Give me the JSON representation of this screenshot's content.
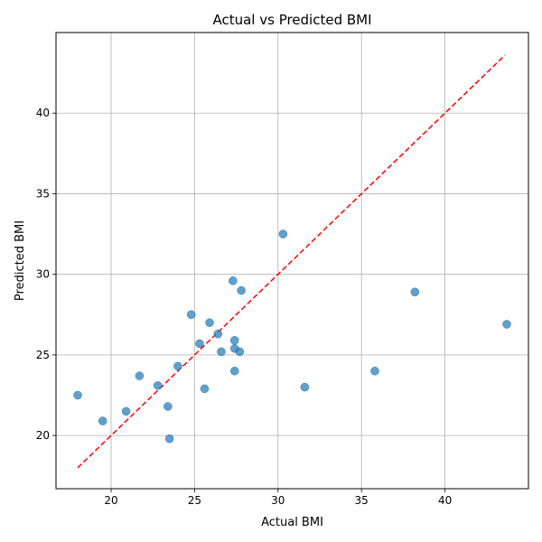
{
  "chart_data": {
    "type": "scatter",
    "title": "Actual vs Predicted BMI",
    "xlabel": "Actual BMI",
    "ylabel": "Predicted BMI",
    "xlim": [
      16.7,
      45.0
    ],
    "ylim": [
      16.7,
      45.0
    ],
    "xticks": [
      20,
      25,
      30,
      35,
      40
    ],
    "yticks": [
      20,
      25,
      30,
      35,
      40
    ],
    "grid": true,
    "legend": "none",
    "point_color": "#1f77b4",
    "reference_line": {
      "x": [
        18.0,
        43.6
      ],
      "y": [
        18.0,
        43.6
      ],
      "color": "#ff0000",
      "style": "dashed"
    },
    "points": [
      {
        "x": 18.0,
        "y": 22.5
      },
      {
        "x": 19.5,
        "y": 20.9
      },
      {
        "x": 20.9,
        "y": 21.5
      },
      {
        "x": 21.7,
        "y": 23.7
      },
      {
        "x": 22.8,
        "y": 23.1
      },
      {
        "x": 23.4,
        "y": 21.8
      },
      {
        "x": 23.5,
        "y": 19.8
      },
      {
        "x": 24.0,
        "y": 24.3
      },
      {
        "x": 24.8,
        "y": 27.5
      },
      {
        "x": 25.3,
        "y": 25.7
      },
      {
        "x": 25.6,
        "y": 22.9
      },
      {
        "x": 25.9,
        "y": 27.0
      },
      {
        "x": 26.4,
        "y": 26.3
      },
      {
        "x": 26.6,
        "y": 25.2
      },
      {
        "x": 27.3,
        "y": 29.6
      },
      {
        "x": 27.4,
        "y": 25.9
      },
      {
        "x": 27.4,
        "y": 25.4
      },
      {
        "x": 27.4,
        "y": 24.0
      },
      {
        "x": 27.7,
        "y": 25.2
      },
      {
        "x": 27.8,
        "y": 29.0
      },
      {
        "x": 30.3,
        "y": 32.5
      },
      {
        "x": 31.6,
        "y": 23.0
      },
      {
        "x": 35.8,
        "y": 24.0
      },
      {
        "x": 38.2,
        "y": 28.9
      },
      {
        "x": 43.7,
        "y": 26.9
      }
    ]
  }
}
